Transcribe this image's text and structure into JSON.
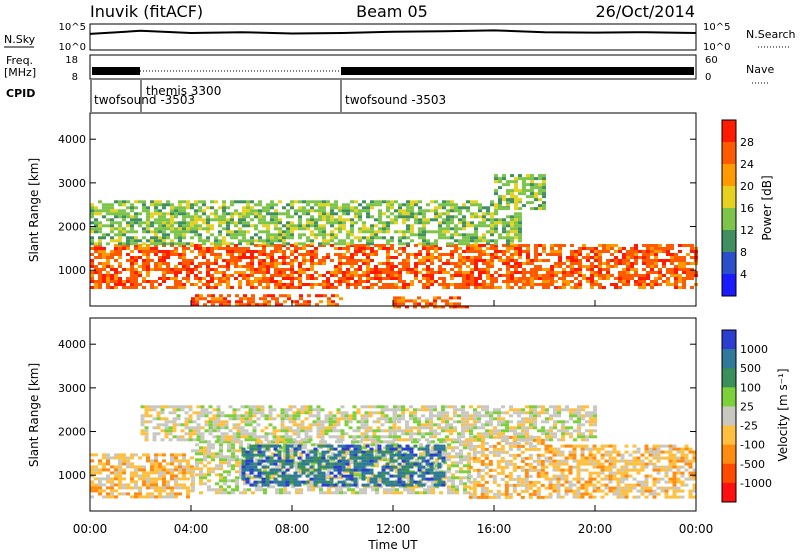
{
  "header": {
    "station": "Inuvik (fitACF)",
    "beam": "Beam 05",
    "date": "26/Oct/2014"
  },
  "top_panels": {
    "nsky_label": "N.Sky",
    "nsky_ticks": [
      "10^5",
      "10^0"
    ],
    "nsearch_label": "N.Search",
    "nsearch_ticks": [
      "10^5",
      "10^0"
    ],
    "freq_label": "Freq.",
    "freq_unit": "[MHz]",
    "freq_ticks": [
      "18",
      "8"
    ],
    "nave_label": "Nave",
    "nave_ticks": [
      "60",
      "0"
    ],
    "cpid_label": "CPID",
    "cpid_segments": [
      {
        "label": "twofsound -3503",
        "start_hour": 0
      },
      {
        "label": "themis 3300",
        "start_hour": 2
      },
      {
        "label": "twofsound -3503",
        "start_hour": 10
      }
    ]
  },
  "x_axis": {
    "label": "Time UT",
    "ticks": [
      "00:00",
      "04:00",
      "08:00",
      "12:00",
      "16:00",
      "20:00",
      "00:00"
    ],
    "range_hours": [
      0,
      24
    ]
  },
  "power_panel": {
    "ylabel": "Slant Range [km]",
    "yticks": [
      "1000",
      "2000",
      "3000",
      "4000"
    ],
    "colorbar_label": "Power [dB]",
    "colorbar_ticks": [
      "4",
      "8",
      "12",
      "16",
      "20",
      "24",
      "28"
    ],
    "colors": [
      "#1a1aff",
      "#2a4fc8",
      "#3f8f60",
      "#7cc44a",
      "#e6d020",
      "#ff9900",
      "#ff5a00",
      "#ff1a00"
    ]
  },
  "velocity_panel": {
    "ylabel": "Slant Range [km]",
    "yticks": [
      "1000",
      "2000",
      "3000",
      "4000"
    ],
    "colorbar_label": "Velocity [m s⁻¹]",
    "colorbar_ticks": [
      "1000",
      "500",
      "100",
      "25",
      "-25",
      "-100",
      "-500",
      "-1000"
    ],
    "colors": [
      "#2a3fd0",
      "#2f7a9a",
      "#3a8f5a",
      "#7cd03a",
      "#c8c8c0",
      "#ffc040",
      "#ff8c10",
      "#ff4a00",
      "#ff1010"
    ]
  },
  "chart_data": [
    {
      "type": "line",
      "name": "N.Sky",
      "x": [
        0,
        2,
        4,
        6,
        8,
        10,
        12,
        14,
        16,
        18,
        20,
        22,
        24
      ],
      "y": [
        3.2,
        3.9,
        3.4,
        3.6,
        3.3,
        3.4,
        3.7,
        3.8,
        4.0,
        3.6,
        3.5,
        3.6,
        3.4
      ],
      "ylim": [
        0,
        5
      ]
    },
    {
      "type": "line",
      "name": "Freq.",
      "x": [
        0,
        2,
        10,
        24
      ],
      "y": [
        10.5,
        11,
        10.5,
        10.5
      ],
      "ylim": [
        8,
        18
      ]
    },
    {
      "type": "heatmap",
      "name": "Power",
      "xlim": [
        0,
        24
      ],
      "ylim": [
        180,
        4600
      ],
      "zlim": [
        0,
        30
      ],
      "bands": [
        {
          "t0": 0,
          "t1": 24,
          "r0": 600,
          "r1": 1600,
          "level": 26
        },
        {
          "t0": 0,
          "t1": 17,
          "r0": 1600,
          "r1": 2600,
          "level": 14
        },
        {
          "t0": 4,
          "t1": 10,
          "r0": 180,
          "r1": 450,
          "level": 25
        },
        {
          "t0": 12,
          "t1": 15,
          "r0": 180,
          "r1": 400,
          "level": 24
        },
        {
          "t0": 16,
          "t1": 18,
          "r0": 2400,
          "r1": 3200,
          "level": 12
        }
      ]
    },
    {
      "type": "heatmap",
      "name": "Velocity",
      "xlim": [
        0,
        24
      ],
      "ylim": [
        180,
        4600
      ],
      "zlim": [
        -1000,
        1000
      ],
      "bands": [
        {
          "t0": 0,
          "t1": 4,
          "r0": 500,
          "r1": 1500,
          "level": -300
        },
        {
          "t0": 4,
          "t1": 15,
          "r0": 600,
          "r1": 1800,
          "level": 120
        },
        {
          "t0": 6,
          "t1": 14,
          "r0": 800,
          "r1": 1700,
          "level": 700
        },
        {
          "t0": 15,
          "t1": 18,
          "r0": 500,
          "r1": 1900,
          "level": -300
        },
        {
          "t0": 18,
          "t1": 24,
          "r0": 500,
          "r1": 1700,
          "level": -200
        },
        {
          "t0": 2,
          "t1": 12,
          "r0": 1800,
          "r1": 2600,
          "level": 0
        },
        {
          "t0": 12,
          "t1": 20,
          "r0": 1800,
          "r1": 2600,
          "level": -120
        }
      ]
    }
  ]
}
